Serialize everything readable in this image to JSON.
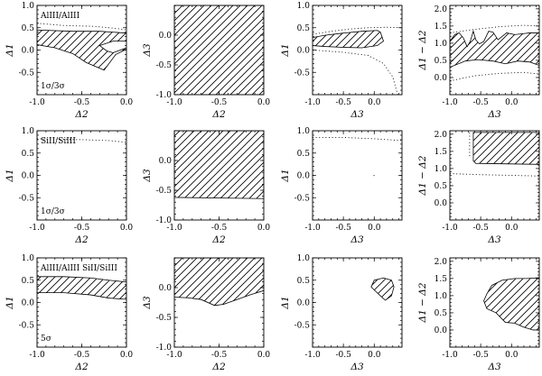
{
  "chart_data": {
    "type": "grid of contour panels",
    "rows": [
      {
        "label": "AlIII/AlIII",
        "sigma_label": "1σ/3σ",
        "panels": [
          {
            "xlabel": "Δ2",
            "ylabel": "Δ1",
            "xlim": [
              -1.0,
              0.0
            ],
            "ylim": [
              -1.0,
              1.0
            ],
            "xticks": [
              -1.0,
              -0.5,
              0.0
            ],
            "yticks": [
              -0.5,
              0.0,
              0.5,
              1.0
            ],
            "shaded_region": [
              [
                -1.0,
                0.45
              ],
              [
                -0.6,
                0.42
              ],
              [
                -0.3,
                0.42
              ],
              [
                0.0,
                0.38
              ],
              [
                0.0,
                0.02
              ],
              [
                -0.12,
                -0.1
              ],
              [
                -0.25,
                -0.45
              ],
              [
                -0.45,
                -0.28
              ],
              [
                -0.6,
                -0.08
              ],
              [
                -0.8,
                0.05
              ],
              [
                -1.0,
                0.12
              ]
            ],
            "notch_region": [
              [
                -0.3,
                0.1
              ],
              [
                -0.15,
                0.2
              ],
              [
                0.0,
                0.2
              ],
              [
                0.0,
                0.05
              ],
              [
                -0.15,
                -0.06
              ],
              [
                -0.22,
                -0.02
              ]
            ],
            "dotted_curves": [
              [
                [
                  -1.0,
                  0.6
                ],
                [
                  -0.7,
                  0.55
                ],
                [
                  -0.35,
                  0.53
                ],
                [
                  -0.1,
                  0.48
                ],
                [
                  0.0,
                  0.45
                ]
              ]
            ]
          },
          {
            "xlabel": "Δ2",
            "ylabel": "Δ3",
            "xlim": [
              -1.0,
              0.0
            ],
            "ylim": [
              -1.0,
              0.5
            ],
            "xticks": [
              -1.0,
              -0.5,
              0.0
            ],
            "yticks": [
              -1.0,
              -0.5,
              0.0
            ],
            "shaded_region": [
              [
                -1.0,
                -1.0
              ],
              [
                0.0,
                -1.0
              ],
              [
                0.0,
                0.5
              ],
              [
                -1.0,
                0.5
              ]
            ],
            "dotted_curves": []
          },
          {
            "xlabel": "Δ3",
            "ylabel": "Δ1",
            "xlim": [
              -1.0,
              0.45
            ],
            "ylim": [
              -1.0,
              1.0
            ],
            "xticks": [
              -1.0,
              -0.5,
              0.0
            ],
            "yticks": [
              -0.5,
              0.0,
              0.5,
              1.0
            ],
            "shaded_region": [
              [
                -1.0,
                0.28
              ],
              [
                -0.8,
                0.33
              ],
              [
                -0.5,
                0.38
              ],
              [
                -0.2,
                0.42
              ],
              [
                0.05,
                0.44
              ],
              [
                0.1,
                0.4
              ],
              [
                0.15,
                0.2
              ],
              [
                0.05,
                0.1
              ],
              [
                -0.2,
                0.05
              ],
              [
                -0.5,
                0.06
              ],
              [
                -0.8,
                0.08
              ],
              [
                -1.0,
                0.1
              ]
            ],
            "dotted_curves": [
              [
                [
                  -1.0,
                  0.35
                ],
                [
                  -0.7,
                  0.42
                ],
                [
                  -0.4,
                  0.47
                ],
                [
                  -0.1,
                  0.5
                ],
                [
                  0.2,
                  0.51
                ],
                [
                  0.45,
                  0.5
                ]
              ],
              [
                [
                  -1.0,
                  0.0
                ],
                [
                  -0.5,
                  -0.05
                ],
                [
                  -0.1,
                  -0.12
                ],
                [
                  0.15,
                  -0.3
                ],
                [
                  0.3,
                  -0.6
                ],
                [
                  0.38,
                  -1.0
                ]
              ]
            ]
          },
          {
            "xlabel": "Δ3",
            "ylabel": "Δ1 − Δ2",
            "xlim": [
              -1.0,
              0.45
            ],
            "ylim": [
              -0.5,
              2.1
            ],
            "xticks": [
              -1.0,
              -0.5,
              0.0
            ],
            "yticks": [
              0.0,
              0.5,
              1.0,
              1.5,
              2.0
            ],
            "shaded_region": [
              [
                -1.0,
                1.05
              ],
              [
                -0.92,
                1.25
              ],
              [
                -0.85,
                1.3
              ],
              [
                -0.78,
                1.15
              ],
              [
                -0.72,
                0.9
              ],
              [
                -0.67,
                1.05
              ],
              [
                -0.62,
                1.35
              ],
              [
                -0.58,
                1.1
              ],
              [
                -0.52,
                0.98
              ],
              [
                -0.45,
                1.05
              ],
              [
                -0.37,
                1.35
              ],
              [
                -0.3,
                1.32
              ],
              [
                -0.22,
                1.1
              ],
              [
                -0.15,
                1.2
              ],
              [
                -0.08,
                1.3
              ],
              [
                0.05,
                1.25
              ],
              [
                0.2,
                1.28
              ],
              [
                0.3,
                1.3
              ],
              [
                0.45,
                1.3
              ],
              [
                0.45,
                0.35
              ],
              [
                0.3,
                0.45
              ],
              [
                0.1,
                0.48
              ],
              [
                -0.1,
                0.4
              ],
              [
                -0.3,
                0.48
              ],
              [
                -0.55,
                0.52
              ],
              [
                -0.75,
                0.48
              ],
              [
                -1.0,
                0.3
              ]
            ],
            "dotted_curves": [
              [
                [
                  -1.0,
                  1.3
                ],
                [
                  -0.6,
                  1.4
                ],
                [
                  -0.2,
                  1.48
                ],
                [
                  0.2,
                  1.52
                ],
                [
                  0.45,
                  1.5
                ]
              ],
              [
                [
                  -1.0,
                  -0.1
                ],
                [
                  -0.6,
                  0.05
                ],
                [
                  -0.2,
                  0.12
                ],
                [
                  0.2,
                  0.15
                ],
                [
                  0.45,
                  0.1
                ]
              ]
            ]
          }
        ]
      },
      {
        "label": "SiII/SiIII",
        "sigma_label": "1σ/3σ",
        "panels": [
          {
            "xlabel": "Δ2",
            "ylabel": "Δ1",
            "xlim": [
              -1.0,
              0.0
            ],
            "ylim": [
              -1.0,
              1.0
            ],
            "xticks": [
              -1.0,
              -0.5,
              0.0
            ],
            "yticks": [
              -0.5,
              0.0,
              0.5,
              1.0
            ],
            "dotted_curves": [
              [
                [
                  -1.0,
                  0.82
                ],
                [
                  -0.5,
                  0.8
                ],
                [
                  -0.2,
                  0.78
                ],
                [
                  0.0,
                  0.74
                ]
              ]
            ]
          },
          {
            "xlabel": "Δ2",
            "ylabel": "Δ3",
            "xlim": [
              -1.0,
              0.0
            ],
            "ylim": [
              -1.0,
              0.5
            ],
            "xticks": [
              -1.0,
              -0.5,
              0.0
            ],
            "yticks": [
              -1.0,
              -0.5,
              0.0
            ],
            "shaded_region": [
              [
                -1.0,
                -0.62
              ],
              [
                0.0,
                -0.64
              ],
              [
                0.0,
                0.5
              ],
              [
                -1.0,
                0.5
              ]
            ],
            "dotted_curves": []
          },
          {
            "xlabel": "Δ3",
            "ylabel": "Δ1",
            "xlim": [
              -1.0,
              0.45
            ],
            "ylim": [
              -1.0,
              1.0
            ],
            "xticks": [
              -1.0,
              -0.5,
              0.0
            ],
            "yticks": [
              -0.5,
              0.0,
              0.5,
              1.0
            ],
            "dotted_curves": [
              [
                [
                  -1.0,
                  0.85
                ],
                [
                  -0.5,
                  0.85
                ],
                [
                  0.0,
                  0.82
                ],
                [
                  0.45,
                  0.78
                ]
              ],
              [
                [
                  -0.01,
                  -0.01
                ],
                [
                  0.01,
                  0.01
                ]
              ]
            ]
          },
          {
            "xlabel": "Δ3",
            "ylabel": "Δ1 − Δ2",
            "xlim": [
              -1.0,
              0.45
            ],
            "ylim": [
              -0.5,
              2.1
            ],
            "xticks": [
              -1.0,
              -0.5,
              0.0
            ],
            "yticks": [
              0.0,
              0.5,
              1.0,
              1.5,
              2.0
            ],
            "shaded_region": [
              [
                -0.62,
                2.05
              ],
              [
                0.45,
                2.05
              ],
              [
                0.45,
                1.12
              ],
              [
                -0.58,
                1.15
              ],
              [
                -0.62,
                1.22
              ]
            ],
            "dotted_curves": [
              [
                [
                  -0.68,
                  2.05
                ],
                [
                  -0.68,
                  1.3
                ]
              ],
              [
                [
                  -1.0,
                  0.85
                ],
                [
                  -0.5,
                  0.82
                ],
                [
                  0.0,
                  0.8
                ],
                [
                  0.45,
                  0.78
                ]
              ]
            ]
          }
        ]
      },
      {
        "label": "AlIII/AlIII  SiII/SiIII",
        "sigma_label": "5σ",
        "panels": [
          {
            "xlabel": "Δ2",
            "ylabel": "Δ1",
            "xlim": [
              -1.0,
              0.0
            ],
            "ylim": [
              -1.0,
              1.0
            ],
            "xticks": [
              -1.0,
              -0.5,
              0.0
            ],
            "yticks": [
              -0.5,
              0.0,
              0.5,
              1.0
            ],
            "shaded_region": [
              [
                -1.0,
                0.58
              ],
              [
                -0.7,
                0.58
              ],
              [
                -0.4,
                0.55
              ],
              [
                -0.2,
                0.5
              ],
              [
                0.0,
                0.46
              ],
              [
                0.0,
                0.07
              ],
              [
                -0.2,
                0.1
              ],
              [
                -0.4,
                0.17
              ],
              [
                -0.7,
                0.22
              ],
              [
                -1.0,
                0.22
              ]
            ],
            "dotted_curves": []
          },
          {
            "xlabel": "Δ2",
            "ylabel": "Δ3",
            "xlim": [
              -1.0,
              0.0
            ],
            "ylim": [
              -1.0,
              0.5
            ],
            "xticks": [
              -1.0,
              -0.5,
              0.0
            ],
            "yticks": [
              -1.0,
              -0.5,
              0.0
            ],
            "shaded_region": [
              [
                -1.0,
                0.5
              ],
              [
                0.0,
                0.5
              ],
              [
                0.0,
                -0.05
              ],
              [
                -0.15,
                -0.12
              ],
              [
                -0.3,
                -0.2
              ],
              [
                -0.45,
                -0.28
              ],
              [
                -0.55,
                -0.3
              ],
              [
                -0.7,
                -0.2
              ],
              [
                -0.85,
                -0.17
              ],
              [
                -1.0,
                -0.16
              ]
            ],
            "dotted_curves": []
          },
          {
            "xlabel": "Δ3",
            "ylabel": "Δ1",
            "xlim": [
              -1.0,
              0.45
            ],
            "ylim": [
              -1.0,
              1.0
            ],
            "xticks": [
              -1.0,
              -0.5,
              0.0
            ],
            "yticks": [
              -0.5,
              0.0,
              0.5,
              1.0
            ],
            "shaded_region": [
              [
                -0.05,
                0.35
              ],
              [
                0.0,
                0.5
              ],
              [
                0.15,
                0.55
              ],
              [
                0.28,
                0.5
              ],
              [
                0.32,
                0.35
              ],
              [
                0.28,
                0.15
              ],
              [
                0.18,
                0.05
              ],
              [
                0.1,
                0.15
              ],
              [
                0.0,
                0.28
              ]
            ],
            "dotted_curves": []
          },
          {
            "xlabel": "Δ3",
            "ylabel": "Δ1 − Δ2",
            "xlim": [
              -1.0,
              0.45
            ],
            "ylim": [
              -0.5,
              2.1
            ],
            "xticks": [
              -1.0,
              -0.5,
              0.0
            ],
            "yticks": [
              0.0,
              0.5,
              1.0,
              1.5,
              2.0
            ],
            "shaded_region": [
              [
                -0.4,
                1.05
              ],
              [
                -0.32,
                1.3
              ],
              [
                -0.15,
                1.45
              ],
              [
                0.05,
                1.5
              ],
              [
                0.25,
                1.5
              ],
              [
                0.45,
                1.52
              ],
              [
                0.45,
                0.0
              ],
              [
                0.35,
                0.0
              ],
              [
                0.2,
                0.08
              ],
              [
                0.05,
                0.2
              ],
              [
                -0.1,
                0.22
              ],
              [
                -0.25,
                0.5
              ],
              [
                -0.4,
                0.62
              ],
              [
                -0.45,
                0.85
              ]
            ],
            "dotted_curves": []
          }
        ]
      }
    ]
  }
}
